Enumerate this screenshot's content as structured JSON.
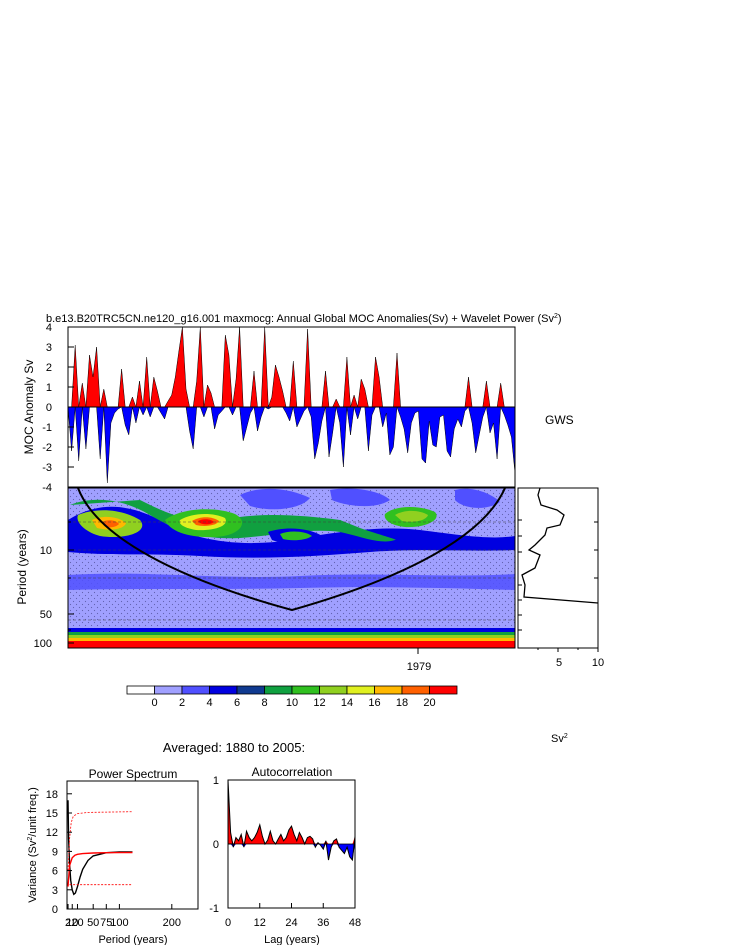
{
  "title": "b.e13.B20TRC5CN.ne120_g16.001 maxmocg: Annual Global MOC Anomalies(Sv) + Wavelet Power (Sv",
  "title_sup": "2",
  "title_end": ")",
  "chart_data": [
    {
      "type": "area",
      "name": "anomaly_timeseries",
      "ylabel": "MOC Anomaly Sv",
      "ylim": [
        -4,
        4
      ],
      "yticks": [
        "4",
        "3",
        "2",
        "1",
        "0",
        "-1",
        "-2",
        "-3",
        "-4"
      ],
      "x_start": 1880,
      "x_end": 2005,
      "positive_color": "#ff0000",
      "negative_color": "#0000ff",
      "values": [
        0.0,
        -2.2,
        3.1,
        -2.7,
        1.2,
        -2.1,
        2.6,
        1.5,
        3.0,
        -2.6,
        0.9,
        -3.8,
        -0.8,
        -0.3,
        -0.1,
        1.9,
        -0.9,
        -1.4,
        0.5,
        -0.8,
        1.3,
        -0.4,
        2.5,
        -0.5,
        1.5,
        0.8,
        -0.3,
        -0.6,
        0.3,
        0.6,
        1.5,
        2.8,
        4.0,
        0.9,
        -1.2,
        -2.1,
        1.3,
        4.0,
        -0.5,
        1.1,
        0.7,
        -1.1,
        -0.4,
        -0.2,
        3.6,
        2.6,
        -0.4,
        1.4,
        4.0,
        -1.7,
        -1.0,
        -0.3,
        1.8,
        -1.2,
        -0.5,
        4.0,
        -0.1,
        0.5,
        2.1,
        1.5,
        0.8,
        -0.3,
        -0.7,
        2.3,
        -1.0,
        -0.6,
        -0.2,
        3.9,
        -0.5,
        -2.6,
        -1.8,
        -0.7,
        1.8,
        -2.5,
        -1.3,
        0.4,
        -0.8,
        -3.0,
        2.5,
        -1.4,
        0.6,
        -0.6,
        1.4,
        0.9,
        -2.2,
        -0.4,
        2.5,
        1.5,
        -1.0,
        -0.3,
        -2.4,
        -2.0,
        2.7,
        -0.5,
        -1.1,
        -2.3,
        -0.8,
        -0.3,
        -0.2,
        -2.6,
        -2.8,
        -0.7,
        -1.9,
        -2.0,
        -0.5,
        -0.4,
        -2.2,
        -2.5,
        -1.1,
        -0.6,
        -1.0,
        -0.2,
        1.5,
        -0.8,
        -2.3,
        -1.4,
        -0.5,
        1.3,
        -1.3,
        -0.8,
        -2.6,
        1.2,
        -0.4,
        -0.9,
        -1.5,
        -3.3
      ]
    },
    {
      "type": "heatmap",
      "name": "wavelet_power",
      "ylabel": "Period (years)",
      "yticks": [
        "10",
        "50",
        "100"
      ],
      "xticks": [
        "1979"
      ],
      "contour_levels": [
        "0",
        "2",
        "4",
        "6",
        "8",
        "10",
        "12",
        "14",
        "16",
        "18",
        "20"
      ],
      "colors": [
        "#ffffff",
        "#a0a0ff",
        "#5050ff",
        "#0000e0",
        "#103a90",
        "#10a040",
        "#30c020",
        "#90d020",
        "#e0f020",
        "#ffb800",
        "#ff6000",
        "#ff0000"
      ],
      "cone_of_influence": true,
      "stippling": true
    },
    {
      "type": "line",
      "name": "global_wavelet_spectrum",
      "label": "GWS",
      "xticks": [
        "5",
        "10"
      ],
      "xlim": [
        0,
        10
      ]
    },
    {
      "type": "line",
      "name": "power_spectrum",
      "title": "Power Spectrum",
      "xlabel": "Period (years)",
      "ylabel_pre": "Variance (Sv",
      "ylabel_sup": "2",
      "ylabel_post": "/unit freq.)",
      "yticks": [
        "18",
        "15",
        "12",
        "9",
        "6",
        "3",
        "0"
      ],
      "ylim": [
        0,
        20
      ],
      "xticks": [
        "2",
        "10",
        "20",
        "50",
        "75",
        "100",
        "200"
      ],
      "xlim": [
        0,
        250
      ],
      "series": [
        {
          "color": "#000000",
          "x": [
            2,
            3,
            5,
            7,
            10,
            13,
            16,
            20,
            25,
            30,
            40,
            50,
            75,
            100,
            125
          ],
          "values": [
            17,
            11,
            7,
            4.5,
            3,
            2.3,
            2.5,
            3.5,
            5,
            6.2,
            7.6,
            8.3,
            8.8,
            8.9,
            8.9
          ]
        },
        {
          "color": "#ff0000",
          "x": [
            2,
            5,
            10,
            15,
            20,
            30,
            50,
            75,
            100,
            125
          ],
          "values": [
            3.5,
            6.8,
            8.0,
            8.4,
            8.55,
            8.65,
            8.75,
            8.8,
            8.82,
            8.83
          ]
        },
        {
          "color": "#ff0000",
          "dashed": true,
          "x": [
            2,
            5,
            8,
            12,
            20,
            40,
            125
          ],
          "values": [
            6,
            11,
            13.5,
            14.5,
            14.9,
            15.1,
            15.2
          ]
        },
        {
          "color": "#ff0000",
          "dashed": true,
          "x": [
            5,
            125
          ],
          "values": [
            3.8,
            3.8
          ]
        }
      ]
    },
    {
      "type": "area",
      "name": "autocorrelation",
      "title": "Autocorrelation",
      "xlabel": "Lag (years)",
      "ylim": [
        -1,
        1
      ],
      "yticks": [
        "1",
        "0",
        "-1"
      ],
      "xticks": [
        "0",
        "12",
        "24",
        "36",
        "48"
      ],
      "xlim": [
        0,
        48
      ],
      "values": [
        1.0,
        0.18,
        -0.05,
        0.1,
        0.05,
        0.15,
        -0.05,
        0.2,
        0.1,
        0.05,
        0.1,
        0.18,
        0.3,
        0.12,
        0.0,
        0.06,
        0.2,
        0.05,
        0.0,
        0.08,
        0.15,
        0.05,
        0.1,
        0.22,
        0.28,
        0.15,
        0.05,
        0.18,
        0.1,
        0.0,
        0.1,
        0.12,
        0.08,
        -0.05,
        0.02,
        -0.02,
        -0.08,
        0.05,
        -0.25,
        -0.05,
        0.05,
        0.08,
        -0.05,
        -0.1,
        -0.15,
        -0.05,
        -0.2,
        -0.25,
        0.12
      ]
    }
  ],
  "averaged_label": "Averaged: 1880 to 2005:",
  "sv2_label_pre": "Sv",
  "sv2_label_sup": "2"
}
